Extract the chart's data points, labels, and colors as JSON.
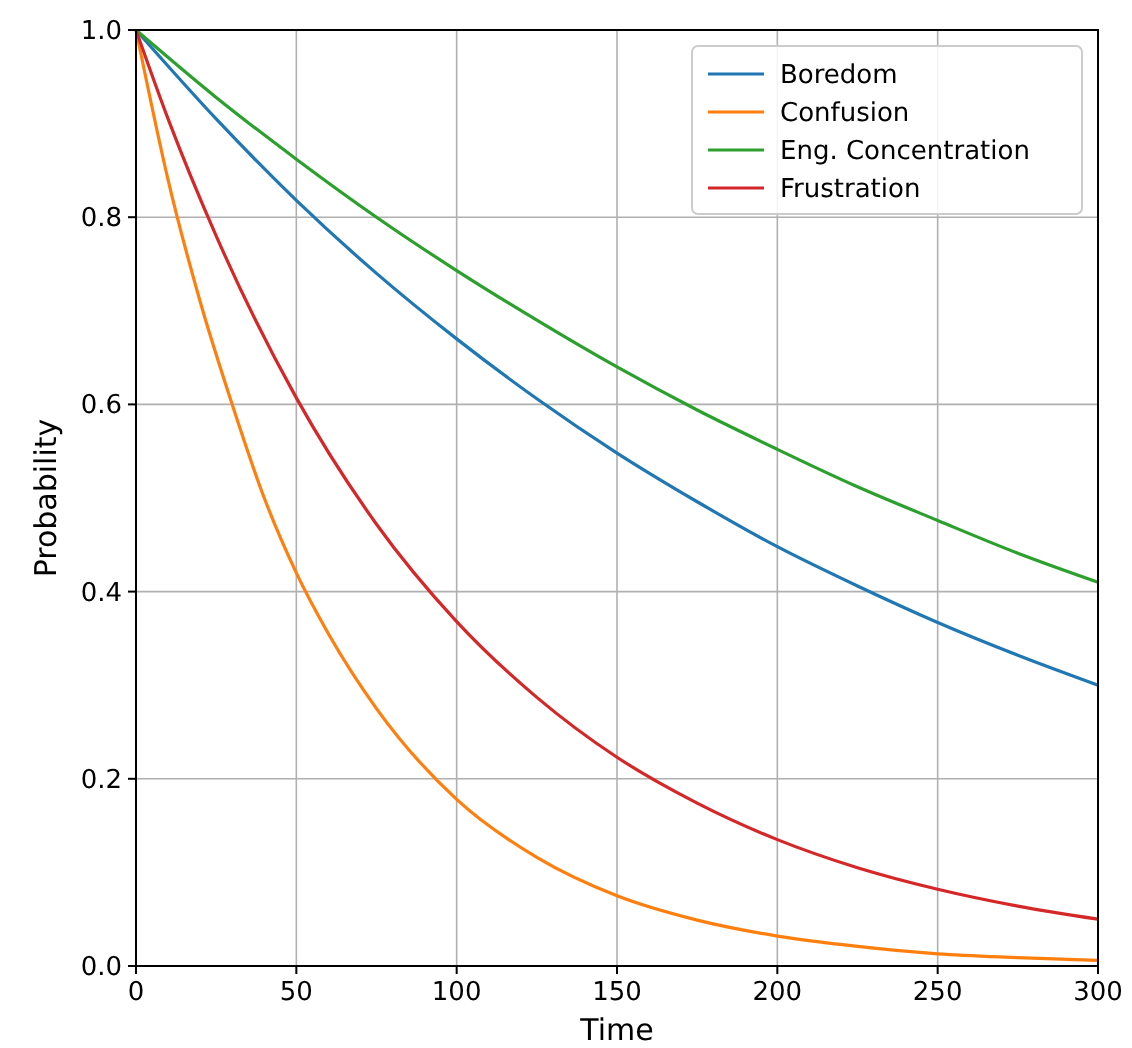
{
  "chart_data": {
    "type": "line",
    "xlabel": "Time",
    "ylabel": "Probability",
    "xlim": [
      0,
      300
    ],
    "ylim": [
      0,
      1
    ],
    "xticks": [
      0,
      50,
      100,
      150,
      200,
      250,
      300
    ],
    "yticks": [
      {
        "value": 0,
        "label": "0.0"
      },
      {
        "value": 0.2,
        "label": "0.2"
      },
      {
        "value": 0.4,
        "label": "0.4"
      },
      {
        "value": 0.6,
        "label": "0.6"
      },
      {
        "value": 0.8,
        "label": "0.8"
      },
      {
        "value": 1,
        "label": "1.0"
      }
    ],
    "grid": true,
    "legend": "top right",
    "series": [
      {
        "name": "Boredom",
        "color": "#1f77b4",
        "x": [
          0,
          25,
          50,
          75,
          100,
          125,
          150,
          175,
          200,
          225,
          250,
          275,
          300
        ],
        "values": [
          1,
          0.905,
          0.818,
          0.74,
          0.67,
          0.606,
          0.548,
          0.496,
          0.448,
          0.406,
          0.367,
          0.332,
          0.3
        ]
      },
      {
        "name": "Confusion",
        "color": "#ff7f0e",
        "x": [
          0,
          10,
          20,
          30,
          40,
          50,
          60,
          75,
          100,
          125,
          150,
          175,
          200,
          225,
          250,
          275,
          300
        ],
        "values": [
          1,
          0.84,
          0.71,
          0.6,
          0.5,
          0.42,
          0.355,
          0.275,
          0.178,
          0.116,
          0.075,
          0.049,
          0.032,
          0.021,
          0.013,
          0.009,
          0.006
        ]
      },
      {
        "name": "Eng. Concentration",
        "color": "#2ca02c",
        "x": [
          0,
          25,
          50,
          75,
          100,
          125,
          150,
          175,
          200,
          225,
          250,
          275,
          300
        ],
        "values": [
          1,
          0.928,
          0.862,
          0.8,
          0.743,
          0.69,
          0.64,
          0.594,
          0.552,
          0.512,
          0.476,
          0.441,
          0.41
        ]
      },
      {
        "name": "Frustration",
        "color": "#d62728",
        "x": [
          0,
          10,
          25,
          50,
          75,
          100,
          125,
          150,
          175,
          200,
          225,
          250,
          275,
          300
        ],
        "values": [
          1,
          0.905,
          0.78,
          0.607,
          0.472,
          0.368,
          0.287,
          0.223,
          0.174,
          0.135,
          0.105,
          0.082,
          0.064,
          0.05
        ]
      }
    ]
  }
}
